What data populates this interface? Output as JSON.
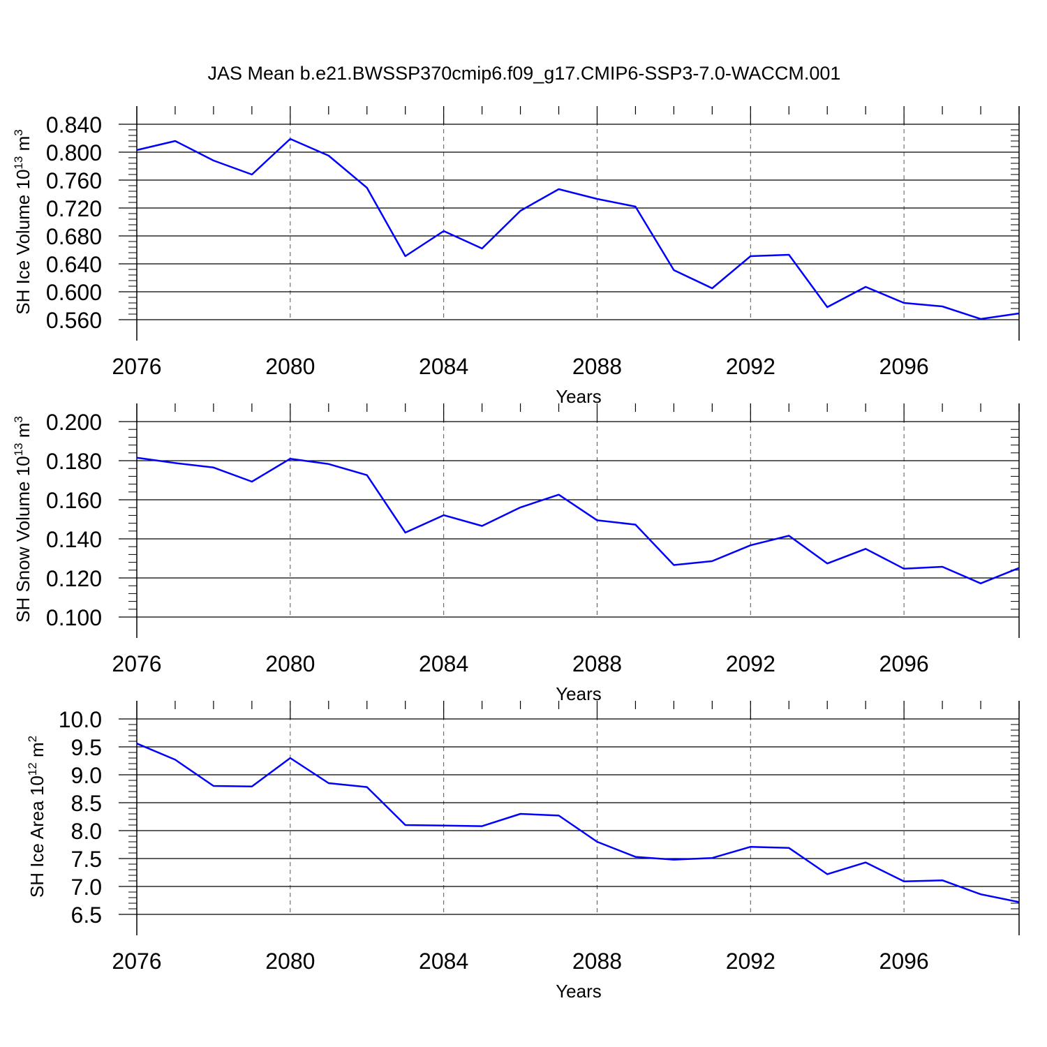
{
  "figure_title": "JAS Mean b.e21.BWSSP370cmip6.f09_g17.CMIP6-SSP3-7.0-WACCM.001",
  "colors": {
    "line": "#0000ff",
    "axis": "#000000",
    "grid": "#555555"
  },
  "chart_data": [
    {
      "type": "line",
      "ylabel": {
        "text": "SH Ice Volume 10",
        "sup1": "13",
        "mid": " m",
        "sup2": "3"
      },
      "xlabel": "Years",
      "xlim": [
        2076,
        2099
      ],
      "ylim": [
        0.56,
        0.84
      ],
      "yticks": [
        0.56,
        0.6,
        0.64,
        0.68,
        0.72,
        0.76,
        0.8,
        0.84
      ],
      "ytick_labels": [
        "0.560",
        "0.600",
        "0.640",
        "0.680",
        "0.720",
        "0.760",
        "0.800",
        "0.840"
      ],
      "xticks": [
        2076,
        2080,
        2084,
        2088,
        2092,
        2096
      ],
      "xtick_labels": [
        "2076",
        "2080",
        "2084",
        "2088",
        "2092",
        "2096"
      ],
      "grid": "vertical dashed at major x ticks",
      "x": [
        2076,
        2077,
        2078,
        2079,
        2080,
        2081,
        2082,
        2083,
        2084,
        2085,
        2086,
        2087,
        2088,
        2089,
        2090,
        2091,
        2092,
        2093,
        2094,
        2095,
        2096,
        2097,
        2098,
        2099
      ],
      "values": [
        0.803,
        0.816,
        0.788,
        0.768,
        0.819,
        0.795,
        0.749,
        0.651,
        0.687,
        0.662,
        0.716,
        0.747,
        0.733,
        0.722,
        0.631,
        0.605,
        0.651,
        0.653,
        0.578,
        0.607,
        0.584,
        0.579,
        0.561,
        0.569
      ]
    },
    {
      "type": "line",
      "ylabel": {
        "text": "SH Snow Volume 10",
        "sup1": "13",
        "mid": " m",
        "sup2": "3"
      },
      "xlabel": "Years",
      "xlim": [
        2076,
        2099
      ],
      "ylim": [
        0.1,
        0.2
      ],
      "yticks": [
        0.1,
        0.12,
        0.14,
        0.16,
        0.18,
        0.2
      ],
      "ytick_labels": [
        "0.100",
        "0.120",
        "0.140",
        "0.160",
        "0.180",
        "0.200"
      ],
      "xticks": [
        2076,
        2080,
        2084,
        2088,
        2092,
        2096
      ],
      "xtick_labels": [
        "2076",
        "2080",
        "2084",
        "2088",
        "2092",
        "2096"
      ],
      "grid": "vertical dashed at major x ticks",
      "x": [
        2076,
        2077,
        2078,
        2079,
        2080,
        2081,
        2082,
        2083,
        2084,
        2085,
        2086,
        2087,
        2088,
        2089,
        2090,
        2091,
        2092,
        2093,
        2094,
        2095,
        2096,
        2097,
        2098,
        2099
      ],
      "values": [
        0.1815,
        0.1788,
        0.1765,
        0.1693,
        0.181,
        0.1783,
        0.1726,
        0.1432,
        0.1521,
        0.1466,
        0.1561,
        0.1626,
        0.1495,
        0.1473,
        0.1266,
        0.1286,
        0.1367,
        0.1416,
        0.1274,
        0.1349,
        0.1247,
        0.1257,
        0.1172,
        0.1251
      ]
    },
    {
      "type": "line",
      "ylabel": {
        "text": "SH Ice Area 10",
        "sup1": "12",
        "mid": " m",
        "sup2": "2"
      },
      "xlabel": "Years",
      "xlim": [
        2076,
        2099
      ],
      "ylim": [
        6.5,
        10.0
      ],
      "yticks": [
        6.5,
        7.0,
        7.5,
        8.0,
        8.5,
        9.0,
        9.5,
        10.0
      ],
      "ytick_labels": [
        "6.5",
        "7.0",
        "7.5",
        "8.0",
        "8.5",
        "9.0",
        "9.5",
        "10.0"
      ],
      "xticks": [
        2076,
        2080,
        2084,
        2088,
        2092,
        2096
      ],
      "xtick_labels": [
        "2076",
        "2080",
        "2084",
        "2088",
        "2092",
        "2096"
      ],
      "grid": "vertical dashed at major x ticks",
      "x": [
        2076,
        2077,
        2078,
        2079,
        2080,
        2081,
        2082,
        2083,
        2084,
        2085,
        2086,
        2087,
        2088,
        2089,
        2090,
        2091,
        2092,
        2093,
        2094,
        2095,
        2096,
        2097,
        2098,
        2099
      ],
      "values": [
        9.56,
        9.27,
        8.8,
        8.79,
        9.3,
        8.85,
        8.78,
        8.1,
        8.09,
        8.08,
        8.3,
        8.27,
        7.8,
        7.53,
        7.48,
        7.51,
        7.71,
        7.69,
        7.22,
        7.43,
        7.09,
        7.11,
        6.86,
        6.72
      ]
    }
  ]
}
